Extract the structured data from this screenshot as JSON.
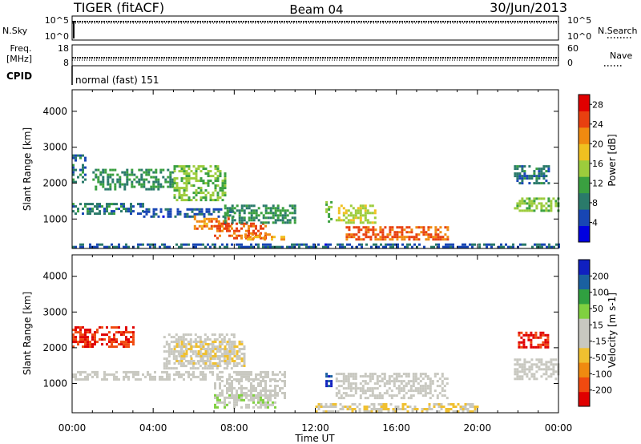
{
  "header": {
    "station": "TIGER (fitACF)",
    "beam": "Beam 04",
    "date": "30/Jun/2013"
  },
  "aux": {
    "nsky_label": "N.Sky",
    "nsky_ticks": [
      "10^5",
      "10^0"
    ],
    "nsearch_label": "N.Search",
    "nsearch_ticks": [
      "10^5",
      "10^0"
    ],
    "freq_label": "Freq.",
    "freq_unit": "[MHz]",
    "freq_ticks": [
      "18",
      "8"
    ],
    "nave_label": "Nave",
    "nave_ticks": [
      "60",
      "0"
    ],
    "cpid_label": "CPID",
    "cpid_value": "normal (fast) 151"
  },
  "colors": {
    "power_scale": [
      "#0000e0",
      "#1846b4",
      "#2a7a6a",
      "#3aa040",
      "#9ccc3c",
      "#f0c020",
      "#f08a10",
      "#e84010",
      "#e00000"
    ],
    "velocity_scale": [
      "#e00000",
      "#f04a10",
      "#f08a10",
      "#f0c030",
      "#c8c8c0",
      "#c8c8c0",
      "#80d040",
      "#30a040",
      "#1a60a0",
      "#1020c0"
    ]
  },
  "chart_data": [
    {
      "type": "heatmap",
      "name": "power",
      "xlabel": "",
      "ylabel": "Slant Range [km]",
      "xlim": [
        "00:00",
        "24:00"
      ],
      "ylim": [
        180,
        4600
      ],
      "yticks": [
        "1000",
        "2000",
        "3000",
        "4000"
      ],
      "xticks": [
        "00:00",
        "04:00",
        "08:00",
        "12:00",
        "16:00",
        "20:00",
        "00:00"
      ],
      "colorbar_label": "Power [dB]",
      "colorbar_ticks": [
        "4",
        "8",
        "12",
        "16",
        "20",
        "24",
        "28"
      ],
      "colorbar_range": [
        0,
        30
      ],
      "bands": [
        {
          "t0": 0.0,
          "t1": 3.5,
          "r0": 1150,
          "r1": 1450,
          "value": 8
        },
        {
          "t0": 0.0,
          "t1": 0.6,
          "r0": 2000,
          "r1": 2800,
          "value": 8
        },
        {
          "t0": 1.0,
          "t1": 5.0,
          "r0": 1800,
          "r1": 2400,
          "value": 10
        },
        {
          "t0": 3.5,
          "t1": 8.0,
          "r0": 1050,
          "r1": 1300,
          "value": 6
        },
        {
          "t0": 5.0,
          "t1": 7.5,
          "r0": 1500,
          "r1": 2500,
          "value": 14
        },
        {
          "t0": 6.0,
          "t1": 7.8,
          "r0": 700,
          "r1": 1100,
          "value": 22
        },
        {
          "t0": 7.0,
          "t1": 9.5,
          "r0": 450,
          "r1": 900,
          "value": 24
        },
        {
          "t0": 7.5,
          "t1": 11.0,
          "r0": 900,
          "r1": 1400,
          "value": 10
        },
        {
          "t0": 8.5,
          "t1": 10.5,
          "r0": 400,
          "r1": 600,
          "value": 20
        },
        {
          "t0": 12.5,
          "t1": 12.8,
          "r0": 950,
          "r1": 1500,
          "value": 12
        },
        {
          "t0": 13.0,
          "t1": 15.0,
          "r0": 900,
          "r1": 1400,
          "value": 16
        },
        {
          "t0": 13.5,
          "t1": 18.5,
          "r0": 400,
          "r1": 800,
          "value": 24
        },
        {
          "t0": 21.8,
          "t1": 24.0,
          "r0": 1200,
          "r1": 1600,
          "value": 14
        },
        {
          "t0": 21.8,
          "t1": 23.5,
          "r0": 2000,
          "r1": 2500,
          "value": 8
        },
        {
          "t0": 0.0,
          "t1": 24.0,
          "r0": 200,
          "r1": 320,
          "value": 6
        }
      ]
    },
    {
      "type": "heatmap",
      "name": "velocity",
      "xlabel": "Time UT",
      "ylabel": "Slant Range [km]",
      "xlim": [
        "00:00",
        "24:00"
      ],
      "ylim": [
        180,
        4600
      ],
      "yticks": [
        "1000",
        "2000",
        "3000",
        "4000"
      ],
      "xticks": [
        "00:00",
        "04:00",
        "08:00",
        "12:00",
        "16:00",
        "20:00",
        "00:00"
      ],
      "colorbar_label": "Velocity [m s-1]",
      "colorbar_ticks": [
        "200",
        "100",
        "50",
        "15",
        "-15",
        "-50",
        "-100",
        "-200"
      ],
      "colorbar_range": [
        -250,
        250
      ],
      "bands": [
        {
          "t0": 0.0,
          "t1": 3.0,
          "r0": 2000,
          "r1": 2600,
          "value": -200
        },
        {
          "t0": 0.0,
          "t1": 10.5,
          "r0": 1100,
          "r1": 1350,
          "value": 0
        },
        {
          "t0": 4.5,
          "t1": 8.0,
          "r0": 1400,
          "r1": 2400,
          "value": 0
        },
        {
          "t0": 5.0,
          "t1": 8.5,
          "r0": 1500,
          "r1": 2200,
          "value": -40
        },
        {
          "t0": 7.0,
          "t1": 10.5,
          "r0": 600,
          "r1": 1100,
          "value": 0
        },
        {
          "t0": 7.0,
          "t1": 10.0,
          "r0": 300,
          "r1": 700,
          "value": 30
        },
        {
          "t0": 12.5,
          "t1": 12.8,
          "r0": 900,
          "r1": 1300,
          "value": 220
        },
        {
          "t0": 13.0,
          "t1": 18.5,
          "r0": 600,
          "r1": 1300,
          "value": 0
        },
        {
          "t0": 12.0,
          "t1": 20.0,
          "r0": 200,
          "r1": 450,
          "value": -40
        },
        {
          "t0": 21.8,
          "t1": 24.0,
          "r0": 1100,
          "r1": 1700,
          "value": 0
        },
        {
          "t0": 22.0,
          "t1": 23.5,
          "r0": 2000,
          "r1": 2450,
          "value": -200
        }
      ]
    }
  ]
}
